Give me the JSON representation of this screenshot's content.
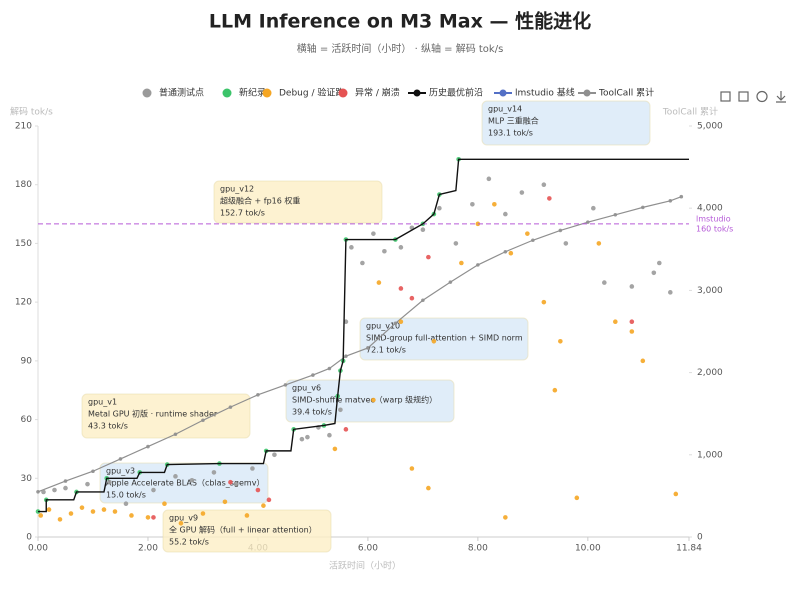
{
  "chart_data": {
    "type": "scatter",
    "title": "LLM Inference on M3 Max — 性能进化",
    "subtitle": "横轴 = 活跃时间（小时） · 纵轴 = 解码 tok/s",
    "x_label": "活跃时间（小时）",
    "y_label": "解码 tok/s",
    "y2_label": "ToolCall 累计",
    "xlim": [
      0,
      11.84
    ],
    "xticks": [
      {
        "value": 0,
        "label": "0.00"
      },
      {
        "value": 2,
        "label": "2.00"
      },
      {
        "value": 4,
        "label": "4.00"
      },
      {
        "value": 6,
        "label": "6.00"
      },
      {
        "value": 8,
        "label": "8.00"
      },
      {
        "value": 10,
        "label": "10.00"
      },
      11.84
    ],
    "ylim": [
      0,
      210
    ],
    "yticks": [
      0,
      30,
      60,
      90,
      120,
      150,
      180,
      210
    ],
    "y2lim": [
      0,
      5000
    ],
    "y2ticks": [
      0,
      {
        "value": 1000,
        "label": "1,000"
      },
      {
        "value": 2000,
        "label": "2,000"
      },
      {
        "value": 3000,
        "label": "3,000"
      },
      {
        "value": 4000,
        "label": "4,000"
      },
      {
        "value": 5000,
        "label": "5,000"
      }
    ],
    "grid": false,
    "legend": "top",
    "series": [
      {
        "name": "普通测试点",
        "mode": "markers",
        "color": "#9a9a9a",
        "x": [
          0.1,
          0.3,
          0.5,
          0.9,
          1.3,
          1.6,
          2.1,
          2.5,
          2.8,
          3.2,
          3.6,
          3.9,
          4.3,
          4.8,
          5.1,
          5.3,
          5.5,
          5.6,
          5.7,
          5.9,
          6.1,
          6.3,
          6.8,
          7.0,
          7.3,
          7.6,
          7.9,
          8.2,
          8.5,
          8.8,
          9.2,
          9.6,
          10.1,
          10.3,
          10.8,
          11.2,
          11.5,
          11.3,
          4.9,
          6.6
        ],
        "values": [
          23,
          24,
          25,
          27,
          28,
          17,
          24,
          31,
          29,
          33,
          27,
          35,
          42,
          50,
          56,
          52,
          65,
          110,
          148,
          140,
          155,
          146,
          158,
          157,
          168,
          150,
          170,
          183,
          165,
          176,
          180,
          150,
          168,
          130,
          128,
          135,
          125,
          140,
          51,
          148
        ]
      },
      {
        "name": "新纪录",
        "mode": "markers",
        "color": "#3cc46a",
        "x": [
          0,
          0.15,
          0.7,
          1.25,
          1.85,
          2.35,
          3.3,
          4.15,
          4.65,
          5.2,
          5.45,
          5.5,
          5.55,
          5.6,
          6.5,
          7.0,
          7.2,
          7.3,
          7.65
        ],
        "values": [
          13,
          19,
          23,
          30,
          33,
          37,
          37.5,
          44,
          55,
          57,
          72,
          85,
          90,
          152,
          152,
          160,
          165,
          175,
          193
        ]
      },
      {
        "name": "Debug / 验证跑",
        "mode": "markers",
        "color": "#f5a623",
        "x": [
          0.05,
          0.2,
          0.4,
          0.6,
          0.8,
          1.0,
          1.2,
          1.4,
          1.7,
          2.0,
          2.3,
          2.6,
          3.0,
          3.4,
          3.8,
          4.1,
          5.4,
          6.1,
          6.2,
          6.6,
          7.2,
          7.7,
          8.0,
          8.3,
          8.6,
          8.9,
          9.2,
          9.5,
          9.8,
          10.5,
          10.8,
          11.0,
          11.6,
          7.1,
          8.5,
          6.8,
          10.2,
          9.4
        ],
        "values": [
          11,
          14,
          9,
          12,
          15,
          13,
          14,
          13,
          11,
          10,
          17,
          7,
          12,
          18,
          11,
          16,
          45,
          70,
          130,
          110,
          100,
          140,
          160,
          170,
          145,
          155,
          120,
          100,
          20,
          110,
          105,
          90,
          22,
          25,
          10,
          35,
          150,
          75
        ]
      },
      {
        "name": "异常 / 崩溃",
        "mode": "markers",
        "color": "#e55353",
        "x": [
          2.1,
          3.5,
          4.0,
          4.2,
          5.6,
          6.6,
          6.8,
          7.1,
          9.3,
          10.8
        ],
        "values": [
          10,
          28,
          24,
          19,
          55,
          127,
          122,
          143,
          173,
          110
        ]
      },
      {
        "name": "历史最优前沿",
        "mode": "line",
        "color": "#111111",
        "x": [
          0,
          0.15,
          0.15,
          0.65,
          0.7,
          1.2,
          1.25,
          1.8,
          1.85,
          2.3,
          2.35,
          3.3,
          4.1,
          4.15,
          4.6,
          4.65,
          5.2,
          5.4,
          5.45,
          5.5,
          5.55,
          5.6,
          6.5,
          7.0,
          7.2,
          7.3,
          7.6,
          7.65,
          11.84
        ],
        "values": [
          13,
          13,
          19,
          19,
          23,
          23,
          30,
          30,
          33,
          33,
          37,
          37.5,
          37.5,
          44,
          44,
          55,
          57,
          58,
          72,
          85,
          90,
          152,
          152,
          160,
          165,
          175,
          177,
          193,
          193
        ]
      },
      {
        "name": "lmstudio 基线",
        "mode": "hline",
        "color": "#b65bd8",
        "values": [
          160
        ],
        "label_lines": [
          "lmstudio",
          "160 tok/s"
        ]
      },
      {
        "name": "ToolCall 累计",
        "mode": "line+markers",
        "axis": "y2",
        "color": "#8f8f8f",
        "x": [
          0,
          0.5,
          1,
          1.5,
          2,
          2.5,
          3,
          3.5,
          4,
          4.5,
          5,
          5.3,
          5.6,
          6,
          6.5,
          7,
          7.5,
          8,
          8.5,
          9,
          9.5,
          10,
          10.5,
          11,
          11.5,
          11.7
        ],
        "values": [
          550,
          680,
          800,
          950,
          1100,
          1250,
          1420,
          1580,
          1730,
          1850,
          1970,
          2050,
          2200,
          2300,
          2600,
          2880,
          3100,
          3310,
          3470,
          3610,
          3730,
          3830,
          3920,
          4010,
          4090,
          4140
        ]
      }
    ],
    "annotations": [
      {
        "lines": [
          "gpu_v14",
          "MLP 三重融合",
          "193.1 tok/s"
        ],
        "fill": "#d8e9f8"
      },
      {
        "lines": [
          "gpu_v12",
          "超级融合 + fp16 权重",
          "152.7 tok/s"
        ],
        "fill": "#fcefc6"
      },
      {
        "lines": [
          "gpu_v10",
          "SIMD-group full-attention + SIMD norm",
          "72.1 tok/s"
        ],
        "fill": "#d8e9f8"
      },
      {
        "lines": [
          "gpu_v6",
          "SIMD-shuffle matvec（warp 级规约）",
          "39.4 tok/s"
        ],
        "fill": "#d8e9f8"
      },
      {
        "lines": [
          "gpu_v1",
          "Metal GPU 初版 · runtime shader",
          "43.3 tok/s"
        ],
        "fill": "#fcefc6"
      },
      {
        "lines": [
          "gpu_v3",
          "Apple Accelerate BLAS（cblas_sgemv）",
          "15.0 tok/s"
        ],
        "fill": "#d8e9f8"
      },
      {
        "lines": [
          "gpu_v9",
          "全 GPU 解码（full + linear attention）",
          "55.2 tok/s"
        ],
        "fill": "#fcefc6"
      }
    ]
  }
}
